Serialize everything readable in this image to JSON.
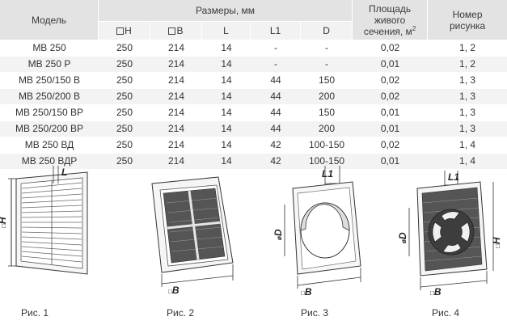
{
  "header": {
    "model": "Модель",
    "dimensions": "Размеры, мм",
    "area_line1": "Площадь",
    "area_line2": "живого",
    "area_line3": "сечения, м",
    "area_sup": "2",
    "fig_line1": "Номер",
    "fig_line2": "рисунка",
    "col_h": "H",
    "col_b": "B",
    "col_l": "L",
    "col_l1": "L1",
    "col_d": "D"
  },
  "rows": [
    {
      "model": "МВ 250",
      "h": "250",
      "b": "214",
      "l": "14",
      "l1": "-",
      "d": "-",
      "area": "0,02",
      "fig": "1, 2"
    },
    {
      "model": "МВ 250 Р",
      "h": "250",
      "b": "214",
      "l": "14",
      "l1": "-",
      "d": "-",
      "area": "0,01",
      "fig": "1, 2"
    },
    {
      "model": "МВ 250/150 В",
      "h": "250",
      "b": "214",
      "l": "14",
      "l1": "44",
      "d": "150",
      "area": "0,02",
      "fig": "1, 3"
    },
    {
      "model": "МВ 250/200 В",
      "h": "250",
      "b": "214",
      "l": "14",
      "l1": "44",
      "d": "200",
      "area": "0,02",
      "fig": "1, 3"
    },
    {
      "model": "МВ 250/150 ВР",
      "h": "250",
      "b": "214",
      "l": "14",
      "l1": "44",
      "d": "150",
      "area": "0,01",
      "fig": "1, 3"
    },
    {
      "model": "МВ 250/200 ВР",
      "h": "250",
      "b": "214",
      "l": "14",
      "l1": "44",
      "d": "200",
      "area": "0,01",
      "fig": "1, 3"
    },
    {
      "model": "МВ 250 ВД",
      "h": "250",
      "b": "214",
      "l": "14",
      "l1": "42",
      "d": "100-150",
      "area": "0,02",
      "fig": "1, 4"
    },
    {
      "model": "МВ 250 ВДР",
      "h": "250",
      "b": "214",
      "l": "14",
      "l1": "42",
      "d": "100-150",
      "area": "0,01",
      "fig": "1, 4"
    }
  ],
  "figures": {
    "fig1": {
      "caption": "Рис. 1",
      "label_h": "H",
      "label_l": "L"
    },
    "fig2": {
      "caption": "Рис. 2",
      "label_b": "B"
    },
    "fig3": {
      "caption": "Рис. 3",
      "label_d": "D",
      "label_b": "B",
      "label_l1": "L1"
    },
    "fig4": {
      "caption": "Рис. 4",
      "label_d": "D",
      "label_b": "B",
      "label_h": "H",
      "label_l1": "L1"
    }
  }
}
